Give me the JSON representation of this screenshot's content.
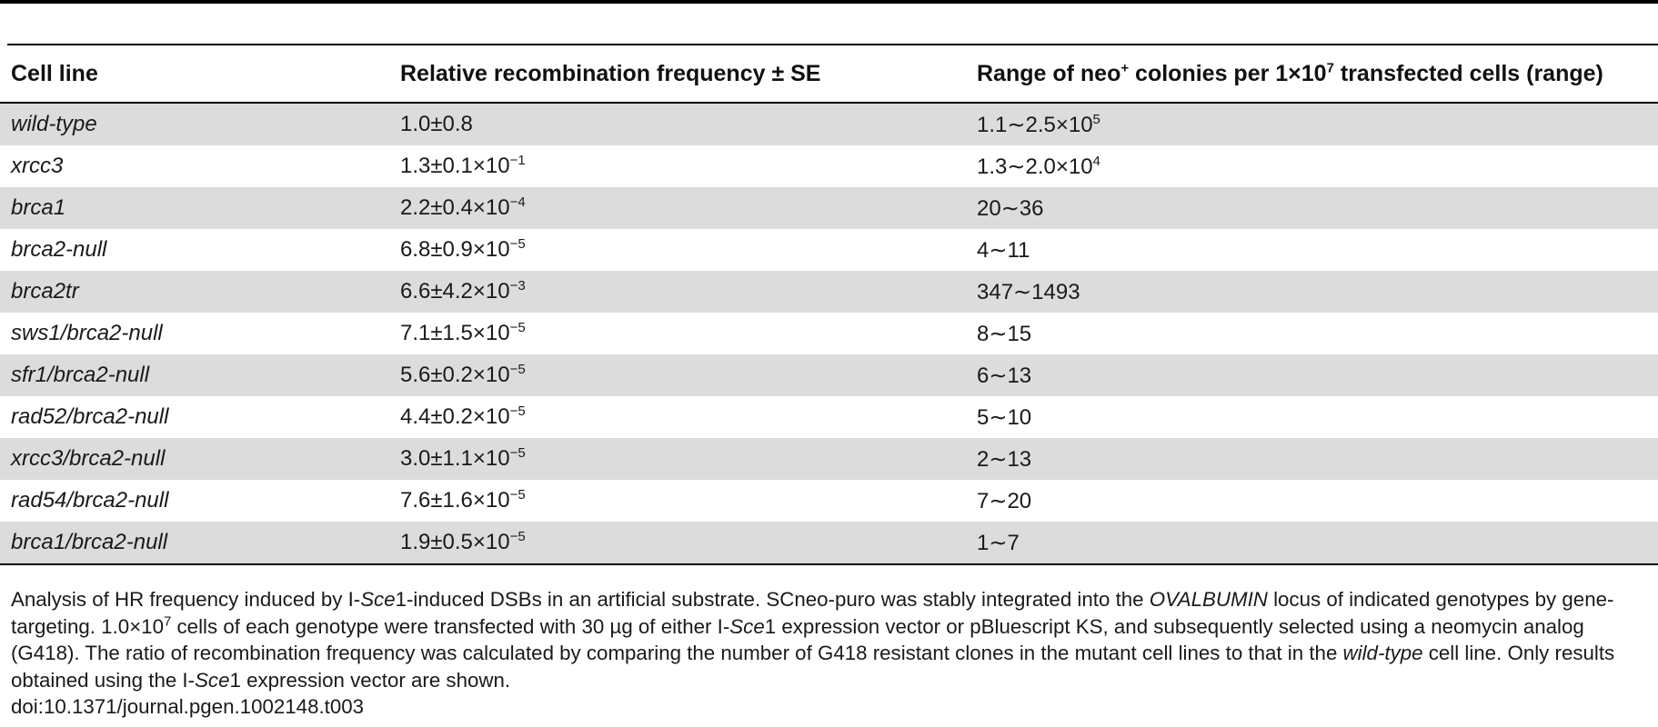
{
  "table": {
    "headers": {
      "cell_line": "Cell line",
      "frequency": "Relative recombination frequency ± SE",
      "range_prefix": "Range of neo",
      "range_sup": "+",
      "range_mid": " colonies per 1×10",
      "range_sup2": "7",
      "range_suffix": " transfected cells (range)"
    },
    "rows": [
      {
        "cell_line": "wild-type",
        "freq": "1.0±0.8",
        "freq_exp": "",
        "range": "1.1∼2.5×10",
        "range_exp": "5"
      },
      {
        "cell_line": "xrcc3",
        "freq": "1.3±0.1×10",
        "freq_exp": "−1",
        "range": "1.3∼2.0×10",
        "range_exp": "4"
      },
      {
        "cell_line": "brca1",
        "freq": "2.2±0.4×10",
        "freq_exp": "−4",
        "range": "20∼36",
        "range_exp": ""
      },
      {
        "cell_line": "brca2-null",
        "freq": "6.8±0.9×10",
        "freq_exp": "−5",
        "range": "4∼11",
        "range_exp": ""
      },
      {
        "cell_line": "brca2tr",
        "freq": "6.6±4.2×10",
        "freq_exp": "−3",
        "range": "347∼1493",
        "range_exp": ""
      },
      {
        "cell_line": "sws1/brca2-null",
        "freq": "7.1±1.5×10",
        "freq_exp": "−5",
        "range": "8∼15",
        "range_exp": ""
      },
      {
        "cell_line": "sfr1/brca2-null",
        "freq": "5.6±0.2×10",
        "freq_exp": "−5",
        "range": "6∼13",
        "range_exp": ""
      },
      {
        "cell_line": "rad52/brca2-null",
        "freq": "4.4±0.2×10",
        "freq_exp": "−5",
        "range": "5∼10",
        "range_exp": ""
      },
      {
        "cell_line": "xrcc3/brca2-null",
        "freq": "3.0±1.1×10",
        "freq_exp": "−5",
        "range": "2∼13",
        "range_exp": ""
      },
      {
        "cell_line": "rad54/brca2-null",
        "freq": "7.6±1.6×10",
        "freq_exp": "−5",
        "range": "7∼20",
        "range_exp": ""
      },
      {
        "cell_line": "brca1/brca2-null",
        "freq": "1.9±0.5×10",
        "freq_exp": "−5",
        "range": "1∼7",
        "range_exp": ""
      }
    ]
  },
  "footnote": {
    "p1": "Analysis of HR frequency induced by I-",
    "i1": "Sce",
    "p2": "1-induced DSBs in an artificial substrate. SCneo-puro was stably integrated into the ",
    "i2": "OVALBUMIN",
    "p3": " locus of indicated genotypes by gene-targeting. 1.0×10",
    "sup1": "7",
    "p4": " cells of each genotype were transfected with 30 µg of either I-",
    "i3": "Sce",
    "p5": "1 expression vector or pBluescript KS, and subsequently selected using a neomycin analog (G418). The ratio of recombination frequency was calculated by comparing the number of G418 resistant clones in the mutant cell lines to that in the ",
    "i4": "wild-type",
    "p6": " cell line. Only results obtained using the I-",
    "i5": "Sce",
    "p7": "1 expression vector are shown."
  },
  "doi": "doi:10.1371/journal.pgen.1002148.t003"
}
